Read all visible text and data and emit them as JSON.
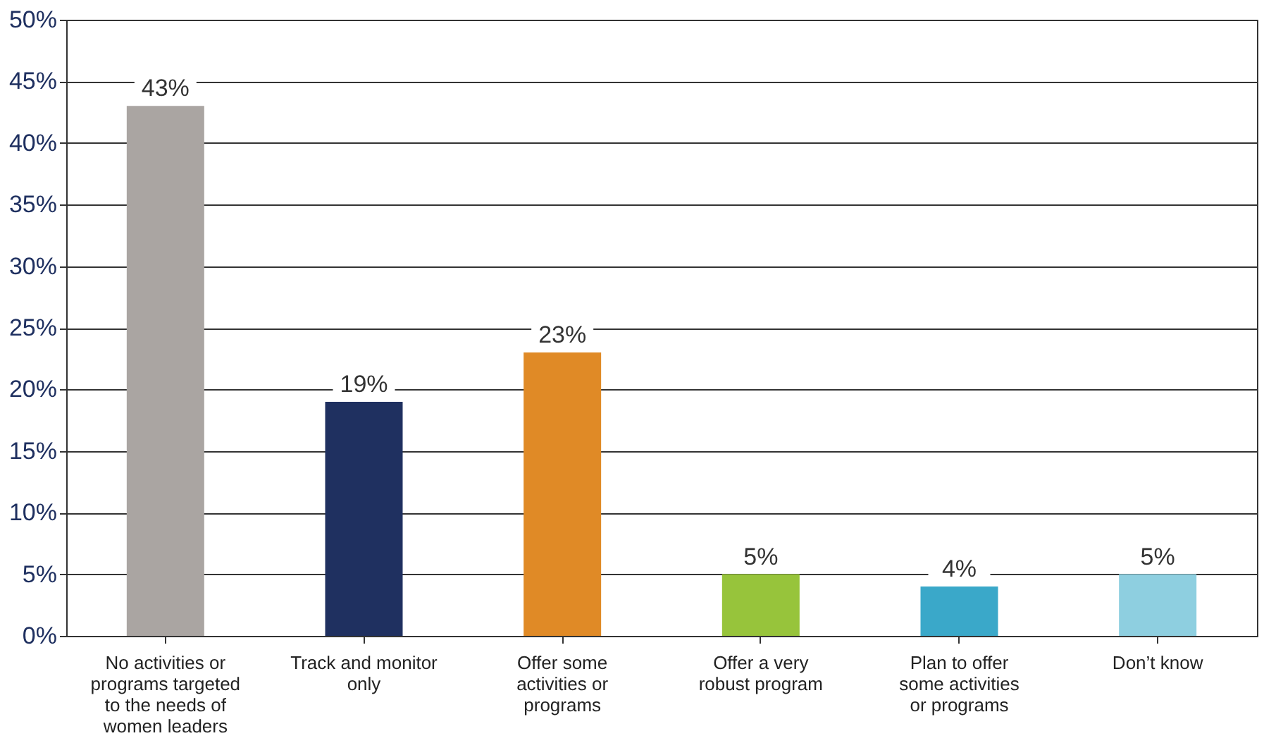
{
  "chart_data": {
    "type": "bar",
    "categories": [
      "No activities or programs targeted to the needs of women leaders",
      "Track and monitor only",
      "Offer some activities or programs",
      "Offer a very robust program",
      "Plan to offer some activities or programs",
      "Don’t know"
    ],
    "values": [
      43,
      19,
      23,
      5,
      4,
      5
    ],
    "colors": [
      "#aaa5a2",
      "#1f3060",
      "#e08a26",
      "#97c43b",
      "#3aa8c9",
      "#8ecfe0"
    ],
    "value_labels": [
      "43%",
      "19%",
      "23%",
      "5%",
      "4%",
      "5%"
    ],
    "ylim": [
      0,
      50
    ],
    "yticks": [
      {
        "value": 0,
        "label": "0%"
      },
      {
        "value": 5,
        "label": "5%"
      },
      {
        "value": 10,
        "label": "10%"
      },
      {
        "value": 15,
        "label": "15%"
      },
      {
        "value": 20,
        "label": "20%"
      },
      {
        "value": 25,
        "label": "25%"
      },
      {
        "value": 30,
        "label": "30%"
      },
      {
        "value": 35,
        "label": "35%"
      },
      {
        "value": 40,
        "label": "40%"
      },
      {
        "value": 45,
        "label": "45%"
      },
      {
        "value": 50,
        "label": "50%"
      }
    ],
    "grid": "y"
  }
}
